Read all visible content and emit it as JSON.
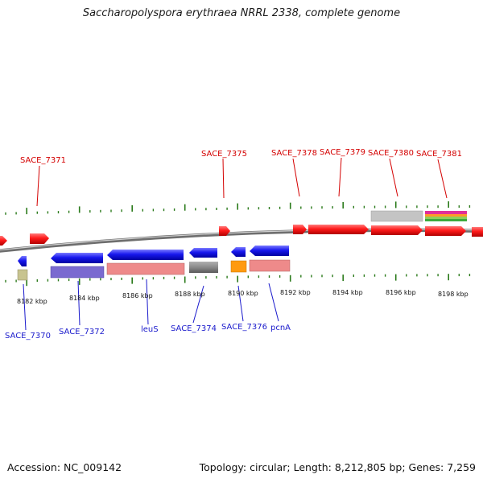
{
  "title": "Saccharopolyspora erythraea NRRL 2338, complete genome",
  "footer": {
    "accession": "Accession: NC_009142",
    "topology": "Topology: circular; Length: 8,212,805 bp; Genes: 7,259"
  },
  "colors": {
    "top_labels": "#d40000",
    "bottom_labels": "#1a1acc",
    "ticks": "#2a7a1a",
    "backbone": "#888888",
    "forward_gene": "#ff1010",
    "reverse_gene": "#1414e6"
  },
  "scale_labels": [
    "8182 kbp",
    "8184 kbp",
    "8186 kbp",
    "8188 kbp",
    "8190 kbp",
    "8192 kbp",
    "8194 kbp",
    "8196 kbp",
    "8198 kbp"
  ],
  "top_genes": [
    "SACE_7371",
    "SACE_7375",
    "SACE_7378",
    "SACE_7379",
    "SACE_7380",
    "SACE_7381"
  ],
  "bottom_genes": [
    "SACE_7370",
    "SACE_7372",
    "leuS",
    "SACE_7374",
    "SACE_7376",
    "pcnA"
  ]
}
